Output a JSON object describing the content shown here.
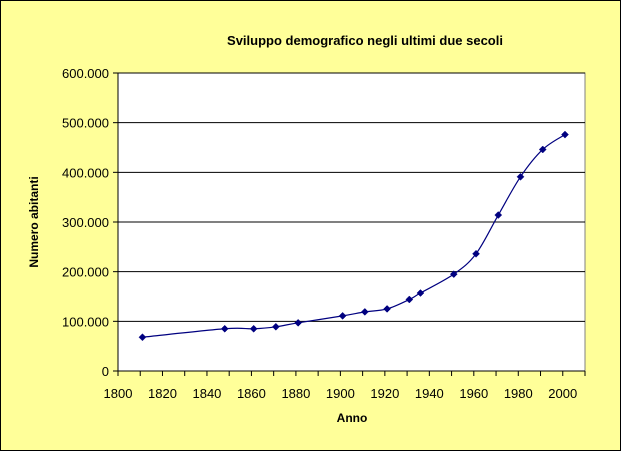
{
  "chart_data": {
    "type": "line",
    "title": "Sviluppo demografico negli ultimi due secoli",
    "xlabel": "Anno",
    "ylabel": "Numero abitanti",
    "xlim": [
      1800,
      2010
    ],
    "ylim": [
      0,
      600000
    ],
    "x_ticks": [
      "1800",
      "1820",
      "1840",
      "1860",
      "1880",
      "1900",
      "1920",
      "1940",
      "1960",
      "1980",
      "2000"
    ],
    "y_ticks": [
      "0",
      "100.000",
      "200.000",
      "300.000",
      "400.000",
      "500.000",
      "600.000"
    ],
    "grid": "horizontal",
    "legend": "none",
    "series": [
      {
        "x": [
          1811,
          1848,
          1861,
          1871,
          1881,
          1901,
          1911,
          1921,
          1931,
          1936,
          1951,
          1961,
          1971,
          1981,
          1991,
          2001
        ],
        "y": [
          68000,
          85000,
          85000,
          89000,
          97000,
          111000,
          119000,
          125000,
          144000,
          157000,
          195000,
          236000,
          314000,
          391000,
          446000,
          476000
        ],
        "color": "#000080"
      }
    ],
    "colors": {
      "background": "#ffff99",
      "plot_area": "#ffffff",
      "line": "#000080"
    }
  }
}
